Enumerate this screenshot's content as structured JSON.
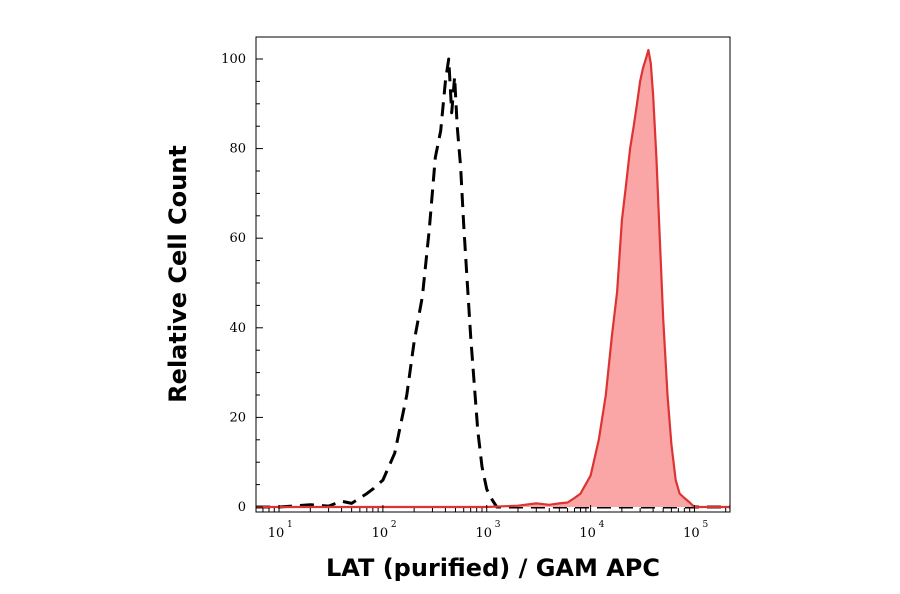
{
  "chart_data": {
    "type": "histogram",
    "title": "",
    "xlabel": "LAT (purified) / GAM APC",
    "ylabel": "Relative Cell Count",
    "x_scale": "log",
    "xlim": [
      6,
      220000
    ],
    "ylim": [
      0,
      105
    ],
    "grid": false,
    "legend": "none",
    "yticks": [
      {
        "value": 0,
        "label": "0"
      },
      {
        "value": 20,
        "label": "20"
      },
      {
        "value": 40,
        "label": "40"
      },
      {
        "value": 60,
        "label": "60"
      },
      {
        "value": 80,
        "label": "80"
      },
      {
        "value": 100,
        "label": "100"
      }
    ],
    "xticks": [
      {
        "value": 10,
        "base": "10",
        "exp": "1"
      },
      {
        "value": 100,
        "base": "10",
        "exp": "2"
      },
      {
        "value": 1000,
        "base": "10",
        "exp": "3"
      },
      {
        "value": 10000,
        "base": "10",
        "exp": "4"
      },
      {
        "value": 100000,
        "base": "10",
        "exp": "5"
      }
    ],
    "series": [
      {
        "style": "dashed",
        "color": "#000000",
        "fill": "none",
        "x": [
          6,
          10,
          20,
          30,
          40,
          50,
          60,
          70,
          80,
          100,
          130,
          170,
          200,
          240,
          280,
          320,
          360,
          400,
          430,
          460,
          490,
          520,
          560,
          600,
          650,
          700,
          760,
          820,
          900,
          1000,
          1100,
          1250,
          1500,
          2000,
          5000,
          20000,
          220000
        ],
        "y": [
          0,
          0,
          0.5,
          0.2,
          1.3,
          0.8,
          2,
          3,
          4,
          6,
          12,
          25,
          37,
          47,
          62,
          78,
          84,
          95,
          100,
          88,
          96,
          85,
          76,
          63,
          50,
          38,
          27,
          17,
          9,
          4,
          2,
          0,
          0,
          0,
          0,
          0,
          0
        ]
      },
      {
        "style": "solid",
        "color": "#dd3333",
        "fill": "#fba6a6",
        "x": [
          6,
          100,
          1000,
          2000,
          3000,
          4000,
          5000,
          6000,
          7000,
          8000,
          10000,
          12000,
          14000,
          16000,
          18000,
          20000,
          22000,
          24000,
          26000,
          28000,
          30000,
          32000,
          34000,
          36000,
          38000,
          40000,
          43000,
          46000,
          50000,
          55000,
          60000,
          66000,
          72000,
          80000,
          90000,
          100000,
          220000
        ],
        "y": [
          0,
          0,
          0,
          0.3,
          0.8,
          0.5,
          0.8,
          1,
          2,
          3,
          7,
          15,
          25,
          38,
          48,
          64,
          72,
          80,
          85,
          90,
          95,
          98,
          100,
          102,
          99,
          92,
          78,
          62,
          42,
          25,
          14,
          6,
          3,
          2,
          1,
          0,
          0
        ]
      }
    ]
  }
}
